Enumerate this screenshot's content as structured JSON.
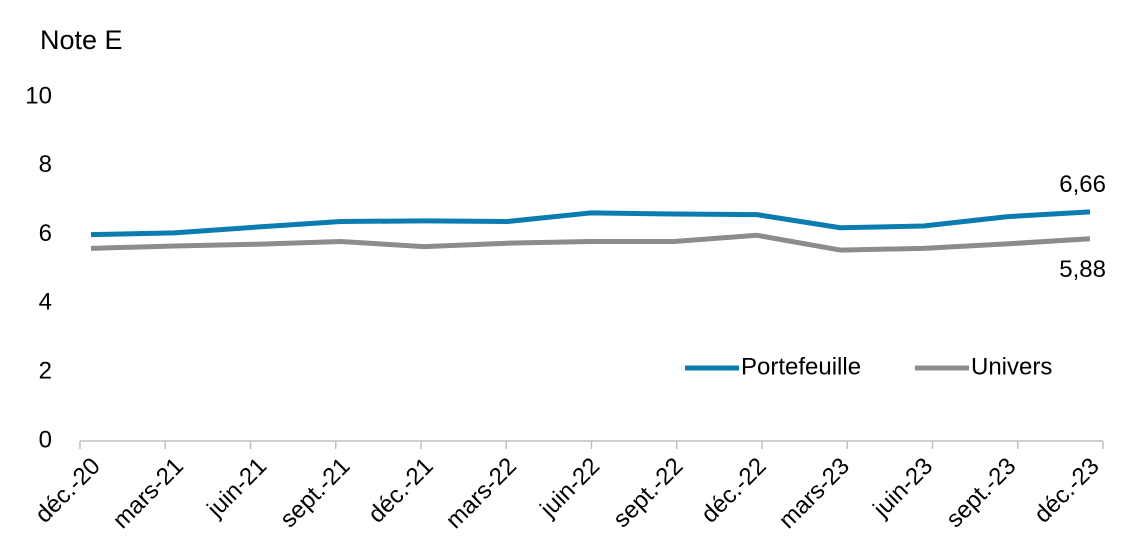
{
  "chart_data": {
    "type": "line",
    "title": "Note E",
    "categories": [
      "déc.-20",
      "mars-21",
      "juin-21",
      "sept.-21",
      "déc.-21",
      "mars-22",
      "juin-22",
      "sept.-22",
      "déc.-22",
      "mars-23",
      "juin-23",
      "sept.-23",
      "déc.-23"
    ],
    "series": [
      {
        "name": "Portefeuille",
        "color": "#0a7cb0",
        "values": [
          6.0,
          6.05,
          6.22,
          6.38,
          6.4,
          6.38,
          6.63,
          6.6,
          6.58,
          6.2,
          6.25,
          6.52,
          6.66
        ],
        "value_labels": [
          null,
          null,
          null,
          null,
          null,
          null,
          null,
          null,
          null,
          null,
          null,
          null,
          "6,66"
        ]
      },
      {
        "name": "Univers",
        "color": "#8a8c8e",
        "values": [
          5.6,
          5.67,
          5.72,
          5.8,
          5.65,
          5.75,
          5.8,
          5.8,
          5.98,
          5.55,
          5.6,
          5.73,
          5.88
        ],
        "value_labels": [
          null,
          null,
          null,
          null,
          null,
          null,
          null,
          null,
          null,
          null,
          null,
          null,
          "5,88"
        ]
      }
    ],
    "ylim": [
      0,
      10
    ],
    "yticks": [
      0,
      2,
      4,
      6,
      8,
      10
    ],
    "grid": false,
    "legend": "right"
  }
}
